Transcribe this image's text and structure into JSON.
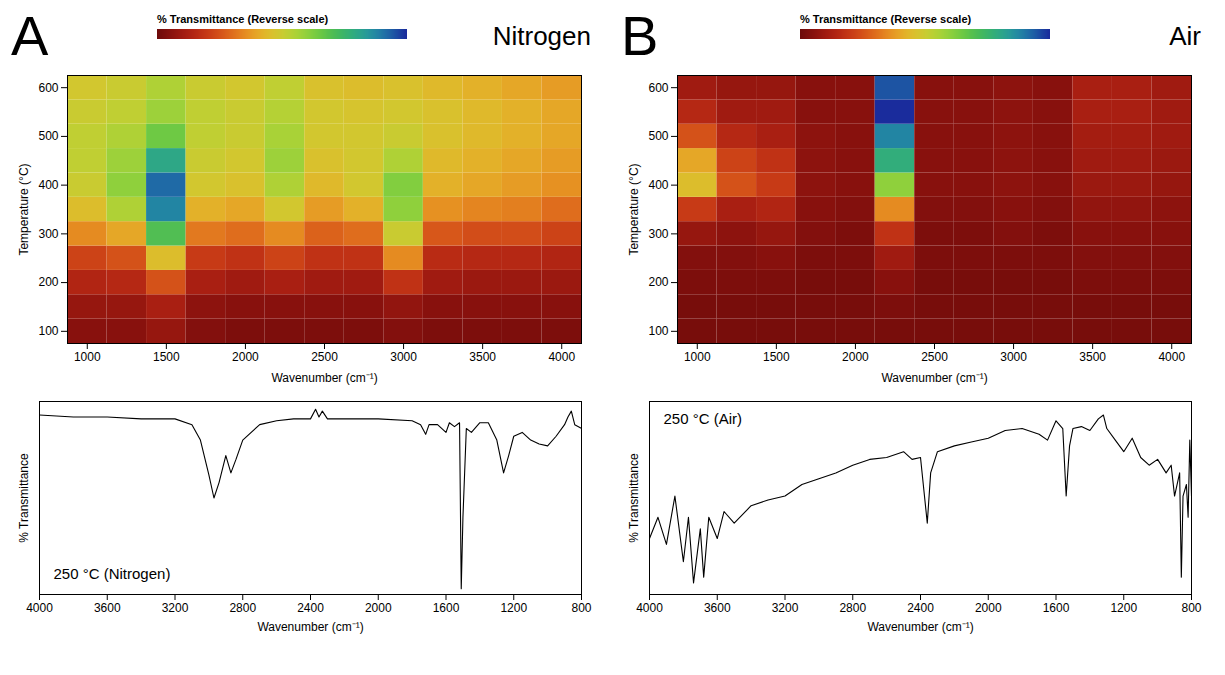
{
  "chart_data": [
    {
      "type": "heatmap",
      "panel": "A",
      "title": "Nitrogen",
      "xlabel": "Wavenumber (cm⁻¹)",
      "ylabel": "Temperature (°C)",
      "x": [
        1000,
        1250,
        1500,
        1750,
        2000,
        2250,
        2500,
        2750,
        3000,
        3250,
        3500,
        3750,
        4000
      ],
      "y": [
        100,
        150,
        200,
        250,
        300,
        350,
        400,
        450,
        500,
        550,
        600
      ],
      "cells": [
        [
          5,
          5,
          8,
          4,
          3,
          3,
          3,
          3,
          4,
          3,
          3,
          3,
          3
        ],
        [
          8,
          8,
          12,
          6,
          5,
          5,
          5,
          5,
          7,
          5,
          5,
          5,
          5
        ],
        [
          14,
          15,
          25,
          12,
          10,
          12,
          10,
          10,
          18,
          10,
          9,
          9,
          9
        ],
        [
          22,
          25,
          45,
          20,
          18,
          22,
          18,
          18,
          35,
          16,
          15,
          15,
          14
        ],
        [
          35,
          40,
          70,
          32,
          30,
          35,
          28,
          30,
          50,
          26,
          24,
          24,
          22
        ],
        [
          45,
          55,
          88,
          42,
          40,
          48,
          38,
          42,
          60,
          36,
          34,
          33,
          30
        ],
        [
          50,
          60,
          92,
          48,
          46,
          55,
          44,
          48,
          62,
          42,
          40,
          38,
          36
        ],
        [
          52,
          58,
          80,
          50,
          48,
          58,
          46,
          48,
          55,
          44,
          42,
          40,
          38
        ],
        [
          52,
          55,
          65,
          52,
          50,
          56,
          48,
          48,
          50,
          46,
          44,
          42,
          40
        ],
        [
          50,
          52,
          58,
          52,
          50,
          54,
          48,
          47,
          48,
          46,
          44,
          42,
          40
        ],
        [
          48,
          50,
          55,
          50,
          48,
          52,
          46,
          45,
          46,
          44,
          42,
          40,
          38
        ]
      ],
      "xlim": [
        875,
        4125
      ],
      "xticks": [
        1000,
        1500,
        2000,
        2500,
        3000,
        3500,
        4000
      ],
      "ylim": [
        75,
        625
      ],
      "yticks": [
        100,
        200,
        300,
        400,
        500,
        600
      ],
      "colorbar": {
        "label": "% Transmittance (Reverse scale)",
        "range": [
          0,
          100
        ],
        "ticks": []
      }
    },
    {
      "type": "heatmap",
      "panel": "B",
      "title": "Air",
      "xlabel": "Wavenumber (cm⁻¹)",
      "ylabel": "Temperature (°C)",
      "x": [
        1000,
        1250,
        1500,
        1750,
        2000,
        2250,
        2500,
        2750,
        3000,
        3250,
        3500,
        3750,
        4000
      ],
      "y": [
        100,
        150,
        200,
        250,
        300,
        350,
        400,
        450,
        500,
        550,
        600
      ],
      "cells": [
        [
          2,
          2,
          2,
          2,
          2,
          2,
          2,
          2,
          2,
          2,
          2,
          2,
          2
        ],
        [
          2,
          2,
          2,
          2,
          2,
          3,
          2,
          2,
          2,
          2,
          2,
          2,
          2
        ],
        [
          3,
          3,
          3,
          2,
          2,
          5,
          2,
          2,
          2,
          2,
          3,
          3,
          3
        ],
        [
          4,
          4,
          5,
          3,
          3,
          10,
          3,
          3,
          3,
          3,
          4,
          4,
          4
        ],
        [
          8,
          6,
          8,
          4,
          3,
          18,
          3,
          3,
          4,
          3,
          5,
          5,
          5
        ],
        [
          20,
          12,
          14,
          5,
          4,
          35,
          4,
          4,
          5,
          4,
          7,
          7,
          6
        ],
        [
          45,
          25,
          20,
          6,
          5,
          60,
          5,
          5,
          6,
          5,
          9,
          9,
          8
        ],
        [
          40,
          22,
          18,
          6,
          5,
          78,
          5,
          5,
          6,
          5,
          10,
          10,
          9
        ],
        [
          25,
          15,
          12,
          6,
          5,
          88,
          5,
          5,
          6,
          5,
          11,
          11,
          10
        ],
        [
          15,
          10,
          10,
          5,
          5,
          100,
          5,
          5,
          6,
          5,
          12,
          12,
          10
        ],
        [
          10,
          8,
          8,
          5,
          5,
          95,
          5,
          5,
          6,
          5,
          12,
          12,
          10
        ]
      ],
      "xlim": [
        875,
        4125
      ],
      "xticks": [
        1000,
        1500,
        2000,
        2500,
        3000,
        3500,
        4000
      ],
      "ylim": [
        75,
        625
      ],
      "yticks": [
        100,
        200,
        300,
        400,
        500,
        600
      ],
      "colorbar": {
        "label": "% Transmittance (Reverse scale)",
        "range": [
          0,
          100
        ],
        "ticks": []
      }
    },
    {
      "type": "line",
      "annotation": "250 °C (Nitrogen)",
      "xlabel": "Wavenumber (cm⁻¹)",
      "ylabel": "% Transmittance",
      "color": "#000000",
      "x": [
        4000,
        3800,
        3600,
        3400,
        3200,
        3100,
        3050,
        3000,
        2970,
        2940,
        2900,
        2870,
        2840,
        2800,
        2700,
        2600,
        2500,
        2400,
        2370,
        2350,
        2330,
        2300,
        2200,
        2000,
        1800,
        1750,
        1720,
        1700,
        1650,
        1600,
        1580,
        1550,
        1520,
        1510,
        1500,
        1480,
        1450,
        1400,
        1350,
        1300,
        1260,
        1230,
        1200,
        1150,
        1100,
        1050,
        1000,
        950,
        900,
        880,
        860,
        840,
        800
      ],
      "values": [
        93,
        92,
        92,
        91,
        91,
        88,
        80,
        62,
        50,
        58,
        72,
        63,
        70,
        80,
        88,
        90,
        91,
        91,
        96,
        92,
        95,
        91,
        91,
        91,
        90,
        88,
        83,
        88,
        88,
        84,
        89,
        87,
        89,
        3,
        40,
        86,
        84,
        89,
        89,
        80,
        63,
        72,
        82,
        84,
        80,
        78,
        77,
        82,
        88,
        92,
        95,
        88,
        86
      ],
      "xlim": [
        4000,
        800
      ],
      "xticks": [
        4000,
        3600,
        3200,
        2800,
        2400,
        2000,
        1600,
        1200,
        800
      ],
      "ylim": [
        0,
        100
      ],
      "yticks": [],
      "tick_labels": "x"
    },
    {
      "type": "line",
      "annotation": "250 °C (Air)",
      "xlabel": "Wavenumber (cm⁻¹)",
      "ylabel": "% Transmittance",
      "color": "#000000",
      "x": [
        4000,
        3950,
        3900,
        3850,
        3800,
        3770,
        3740,
        3700,
        3680,
        3650,
        3600,
        3560,
        3500,
        3400,
        3300,
        3200,
        3100,
        3000,
        2900,
        2800,
        2700,
        2600,
        2500,
        2450,
        2400,
        2360,
        2340,
        2300,
        2200,
        2100,
        2000,
        1900,
        1800,
        1700,
        1650,
        1600,
        1560,
        1540,
        1520,
        1500,
        1450,
        1400,
        1350,
        1320,
        1300,
        1250,
        1200,
        1150,
        1100,
        1050,
        1000,
        950,
        920,
        900,
        870,
        860,
        850,
        830,
        820,
        810,
        800
      ],
      "values": [
        29,
        40,
        26,
        51,
        17,
        40,
        6,
        34,
        9,
        40,
        29,
        43,
        37,
        46,
        49,
        51,
        57,
        60,
        63,
        67,
        70,
        71,
        74,
        70,
        71,
        37,
        63,
        74,
        77,
        79,
        81,
        85,
        86,
        83,
        80,
        90,
        86,
        51,
        77,
        86,
        87,
        85,
        91,
        93,
        86,
        80,
        74,
        81,
        71,
        67,
        70,
        63,
        67,
        51,
        63,
        9,
        51,
        57,
        40,
        80,
        51
      ],
      "xlim": [
        4000,
        800
      ],
      "xticks": [
        4000,
        3600,
        3200,
        2800,
        2400,
        2000,
        1600,
        1200,
        800
      ],
      "ylim": [
        0,
        100
      ],
      "yticks": [],
      "tick_labels": "x"
    }
  ]
}
